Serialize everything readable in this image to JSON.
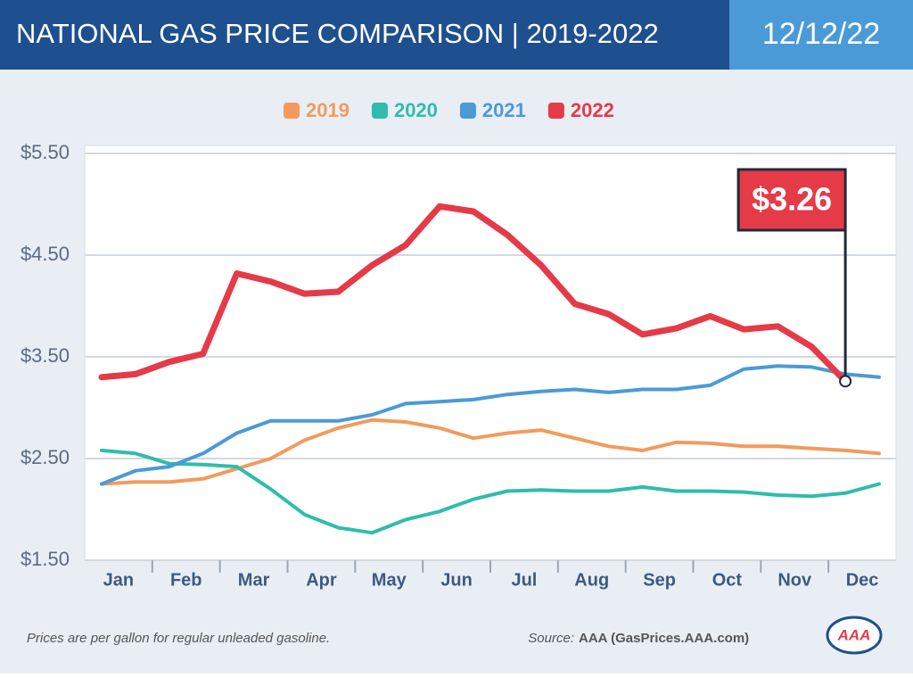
{
  "header": {
    "title": "NATIONAL GAS PRICE COMPARISON | 2019-2022",
    "date": "12/12/22"
  },
  "chart_data": {
    "type": "line",
    "categories": [
      "Jan",
      null,
      "Feb",
      null,
      "Mar",
      null,
      "Apr",
      null,
      "May",
      null,
      "Jun",
      null,
      "Jul",
      null,
      "Aug",
      null,
      "Sep",
      null,
      "Oct",
      null,
      "Nov",
      null,
      "Dec",
      null
    ],
    "series": [
      {
        "name": "2019",
        "color": "#f29b5c",
        "values": [
          2.25,
          2.27,
          2.27,
          2.3,
          2.4,
          2.5,
          2.68,
          2.8,
          2.88,
          2.86,
          2.8,
          2.7,
          2.75,
          2.78,
          2.7,
          2.62,
          2.58,
          2.66,
          2.65,
          2.62,
          2.62,
          2.6,
          2.58,
          2.55
        ]
      },
      {
        "name": "2020",
        "color": "#2ebdad",
        "values": [
          2.58,
          2.55,
          2.45,
          2.44,
          2.42,
          2.2,
          1.95,
          1.82,
          1.77,
          1.9,
          1.98,
          2.1,
          2.18,
          2.19,
          2.18,
          2.18,
          2.22,
          2.18,
          2.18,
          2.17,
          2.14,
          2.13,
          2.16,
          2.25
        ]
      },
      {
        "name": "2021",
        "color": "#4b9ad8",
        "values": [
          2.25,
          2.38,
          2.42,
          2.55,
          2.75,
          2.87,
          2.87,
          2.87,
          2.93,
          3.04,
          3.06,
          3.08,
          3.13,
          3.16,
          3.18,
          3.15,
          3.18,
          3.18,
          3.22,
          3.38,
          3.41,
          3.4,
          3.33,
          3.3
        ]
      },
      {
        "name": "2022",
        "color": "#e53a48",
        "values": [
          3.3,
          3.33,
          3.45,
          3.53,
          4.32,
          4.24,
          4.12,
          4.14,
          4.4,
          4.6,
          4.98,
          4.93,
          4.7,
          4.4,
          4.02,
          3.92,
          3.72,
          3.78,
          3.9,
          3.77,
          3.8,
          3.6,
          3.26,
          null
        ],
        "value_labels": [
          null,
          null,
          null,
          null,
          null,
          null,
          null,
          null,
          null,
          null,
          null,
          null,
          null,
          null,
          null,
          null,
          null,
          null,
          null,
          null,
          null,
          null,
          "$3.26",
          null
        ]
      }
    ],
    "ylim": [
      1.5,
      5.5
    ],
    "yticks": [
      {
        "value": 1.5,
        "label": "$1.50"
      },
      {
        "value": 2.5,
        "label": "$2.50"
      },
      {
        "value": 3.5,
        "label": "$3.50"
      },
      {
        "value": 4.5,
        "label": "$4.50"
      },
      {
        "value": 5.5,
        "label": "$5.50"
      }
    ],
    "grid": true
  },
  "footer": {
    "note": "Prices are per gallon for regular unleaded gasoline.",
    "source_label": "Source:",
    "source": "AAA (GasPrices.AAA.com)",
    "logo": "AAA"
  }
}
